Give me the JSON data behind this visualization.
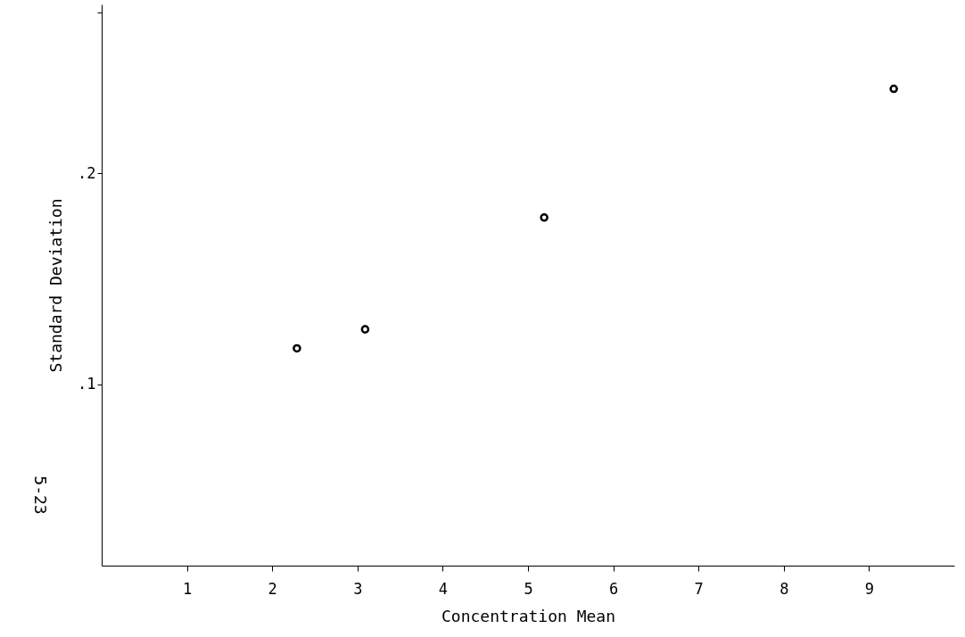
{
  "chart_data": {
    "type": "scatter",
    "xlabel": "Concentration Mean",
    "ylabel": "Standard Deviation",
    "x": [
      2.29,
      3.09,
      5.19,
      9.29
    ],
    "values": [
      0.117,
      0.126,
      0.179,
      0.24
    ],
    "color": "#000000",
    "marker": "circle",
    "xlim": [
      0,
      10
    ],
    "xticks": [
      1,
      2,
      3,
      4,
      5,
      6,
      7,
      8,
      9
    ],
    "ylim": [
      0.014,
      0.28
    ],
    "yticks": [
      {
        "value": 0.1,
        "label": ".1"
      },
      {
        "value": 0.2,
        "label": ".2"
      },
      {
        "value": 0.276,
        "label": null
      }
    ],
    "grid": false,
    "annotations": [
      "5-23"
    ]
  }
}
